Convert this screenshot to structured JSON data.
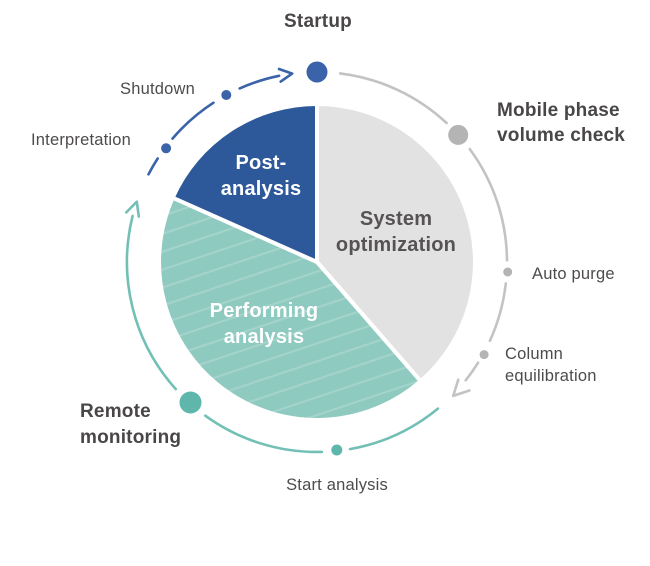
{
  "labels": {
    "startup": "Startup",
    "mobile_phase_volume_check": "Mobile phase\nvolume check",
    "auto_purge": "Auto purge",
    "column_equilibration": "Column\nequilibration",
    "start_analysis": "Start analysis",
    "remote_monitoring": "Remote\nmonitoring",
    "interpretation": "Interpretation",
    "shutdown": "Shutdown",
    "post_analysis": "Post-\nanalysis",
    "system_optimization": "System\noptimization",
    "performing_analysis": "Performing\nanalysis"
  },
  "cycle_sequence": [
    "Startup",
    "Mobile phase volume check",
    "Auto purge",
    "Column equilibration",
    "Start analysis",
    "Remote monitoring",
    "Interpretation",
    "Shutdown"
  ],
  "segments": [
    {
      "name": "System optimization",
      "fill": "gray",
      "start_deg": 0,
      "end_deg": 139,
      "share_pct": 38.6,
      "hatched": false
    },
    {
      "name": "Performing analysis",
      "fill": "teal",
      "start_deg": 139,
      "end_deg": 294,
      "share_pct": 43.1,
      "hatched": true
    },
    {
      "name": "Post-analysis",
      "fill": "blue",
      "start_deg": 294,
      "end_deg": 360,
      "share_pct": 18.3,
      "hatched": false
    }
  ],
  "colors": {
    "background": "#ffffff",
    "pie_gray": "#e3e2e2",
    "pie_teal": "#8fcac0",
    "pie_teal_hatch": "#a4d4cb",
    "pie_blue": "#2d5899",
    "arc_gray": "#c4c3c3",
    "arc_teal": "#72c0b5",
    "arc_blue": "#3a63a9",
    "dot_gray": "#b5b4b4",
    "dot_teal": "#5fb7ac",
    "label_text": "#4e4b4c",
    "segment_label_light": "#ffffff",
    "segment_label_dark": "#565354"
  }
}
